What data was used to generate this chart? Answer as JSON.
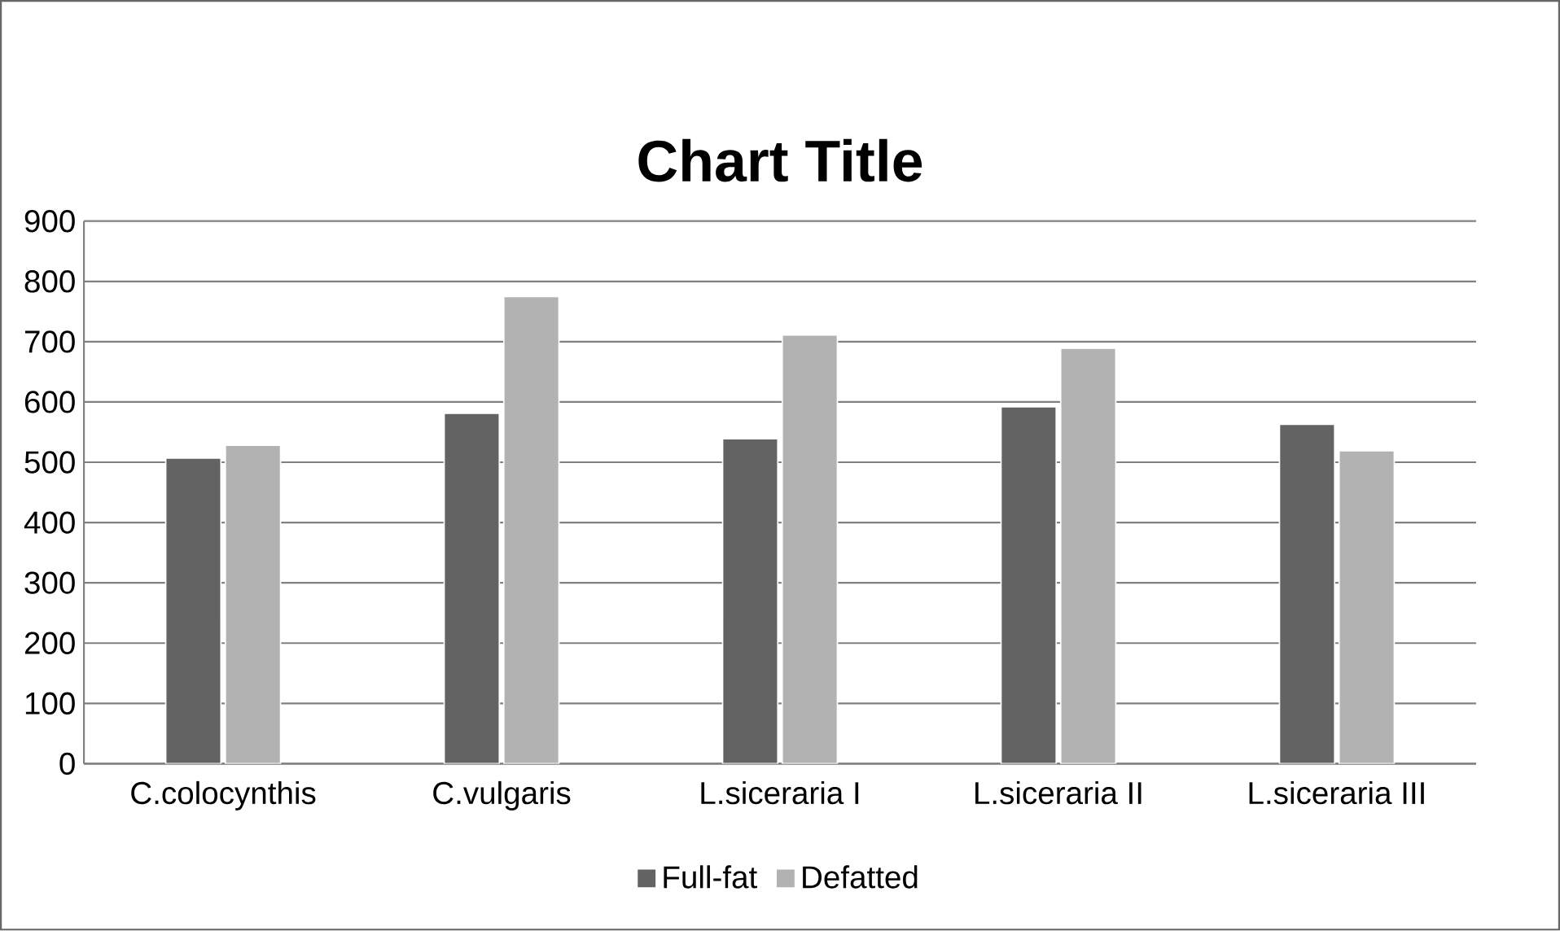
{
  "chart_data": {
    "type": "bar",
    "title": "Chart Title",
    "categories": [
      "C.colocynthis",
      "C.vulgaris",
      "L.siceraria I",
      "L.siceraria II",
      "L.siceraria III"
    ],
    "series": [
      {
        "name": "Full-fat",
        "color": "#636363",
        "values": [
          507,
          581,
          539,
          592,
          563
        ]
      },
      {
        "name": "Defatted",
        "color": "#b2b2b2",
        "values": [
          528,
          775,
          711,
          689,
          519
        ]
      }
    ],
    "ylim": [
      0,
      900
    ],
    "yticks": [
      0,
      100,
      200,
      300,
      400,
      500,
      600,
      700,
      800,
      900
    ],
    "grid": "y",
    "legend": "bottom"
  }
}
